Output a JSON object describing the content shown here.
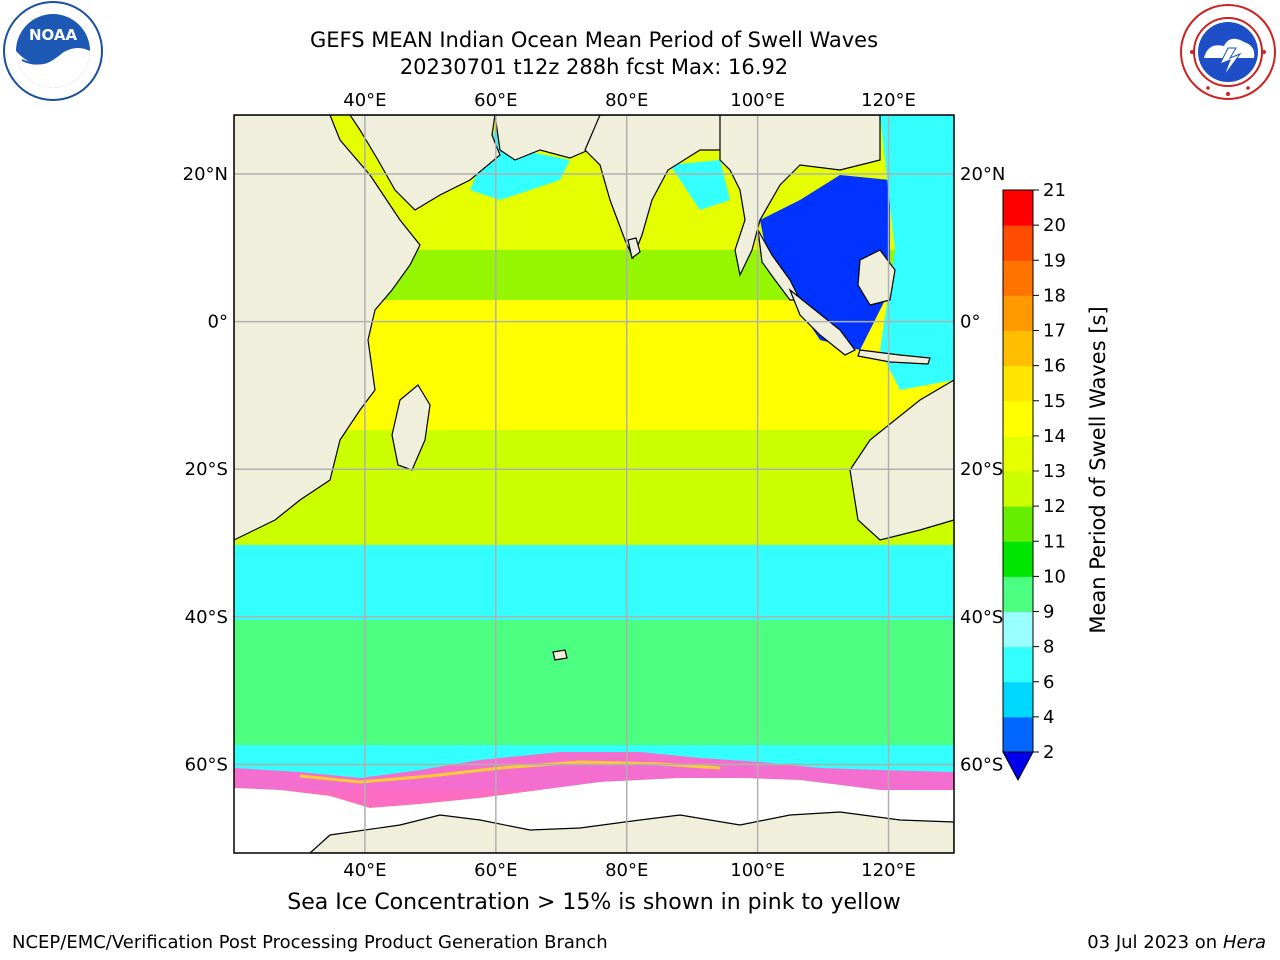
{
  "title_line1": "GEFS MEAN Indian Ocean Mean Period of Swell Waves",
  "title_line2": "20230701 t12z 288h fcst   Max: 16.92",
  "note": "Sea Ice Concentration > 15% is shown in pink to yellow",
  "footer_left": "NCEP/EMC/Verification Post Processing Product Generation Branch",
  "footer_date": "03 Jul 2023 on ",
  "footer_host": "Hera",
  "logos": {
    "left": "noaa-logo",
    "right": "nws-logo",
    "left_text": "NOAA"
  },
  "map": {
    "lon_range": [
      20,
      130
    ],
    "lat_range": [
      -72,
      28
    ],
    "lon_ticks": [
      {
        "value": 40,
        "label": "40°E"
      },
      {
        "value": 60,
        "label": "60°E"
      },
      {
        "value": 80,
        "label": "80°E"
      },
      {
        "value": 100,
        "label": "100°E"
      },
      {
        "value": 120,
        "label": "120°E"
      }
    ],
    "lat_ticks": [
      {
        "value": 20,
        "label": "20°N"
      },
      {
        "value": 0,
        "label": "0°"
      },
      {
        "value": -20,
        "label": "20°S"
      },
      {
        "value": -40,
        "label": "40°S"
      },
      {
        "value": -60,
        "label": "60°S"
      }
    ],
    "colors": {
      "land": "#efefdc",
      "grid": "#b0b0b0",
      "ice_free": "#ffffff"
    }
  },
  "colorbar": {
    "label": "Mean Period of Swell Waves [s]",
    "tick_labels": [
      "2",
      "4",
      "6",
      "8",
      "9",
      "10",
      "11",
      "12",
      "13",
      "14",
      "15",
      "16",
      "17",
      "18",
      "19",
      "20",
      "21"
    ],
    "colors": [
      "#0066ff",
      "#00d8ff",
      "#33ffff",
      "#99ffff",
      "#4dff80",
      "#00e600",
      "#66ee00",
      "#ccff00",
      "#e6ff00",
      "#ffff00",
      "#ffe600",
      "#ffbf00",
      "#ff9900",
      "#ff7300",
      "#ff4d00",
      "#ff2200",
      "#ff0000"
    ],
    "extend_color": "#0000ee"
  }
}
